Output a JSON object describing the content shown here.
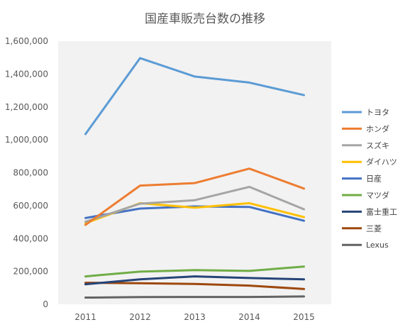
{
  "chart_data": {
    "type": "line",
    "title": "国産車販売台数の推移",
    "xlabel": "",
    "ylabel": "",
    "categories": [
      "2011",
      "2012",
      "2013",
      "2014",
      "2015"
    ],
    "ylim": [
      0,
      1600000
    ],
    "yticks": [
      0,
      200000,
      400000,
      600000,
      800000,
      1000000,
      1200000,
      1400000,
      1600000
    ],
    "ytick_labels": [
      "0",
      "200,000",
      "400,000",
      "600,000",
      "800,000",
      "1,000,000",
      "1,200,000",
      "1,400,000",
      "1,600,000"
    ],
    "grid": "none",
    "legend_position": "right",
    "background": "#f2f2f2",
    "series": [
      {
        "name": "トヨタ",
        "color": "#5b9bd5",
        "values": [
          1035000,
          1497000,
          1385000,
          1348000,
          1272000
        ]
      },
      {
        "name": "ホンダ",
        "color": "#ed7d31",
        "values": [
          483000,
          722000,
          737000,
          825000,
          704000
        ]
      },
      {
        "name": "スズキ",
        "color": "#a5a5a5",
        "values": [
          502000,
          612000,
          633000,
          714000,
          578000
        ]
      },
      {
        "name": "ダイハツ",
        "color": "#ffc000",
        "values": [
          493000,
          615000,
          588000,
          615000,
          530000
        ]
      },
      {
        "name": "日産",
        "color": "#4472c4",
        "values": [
          525000,
          582000,
          595000,
          592000,
          508000
        ]
      },
      {
        "name": "マツダ",
        "color": "#70ad47",
        "values": [
          170000,
          199000,
          208000,
          203000,
          230000
        ]
      },
      {
        "name": "富士重工",
        "color": "#264478",
        "values": [
          122000,
          152000,
          170000,
          160000,
          152000
        ]
      },
      {
        "name": "三菱",
        "color": "#9e480e",
        "values": [
          131000,
          128000,
          124000,
          114000,
          93000
        ]
      },
      {
        "name": "Lexus",
        "color": "#636363",
        "values": [
          41000,
          44000,
          45000,
          45000,
          48000
        ]
      }
    ]
  }
}
